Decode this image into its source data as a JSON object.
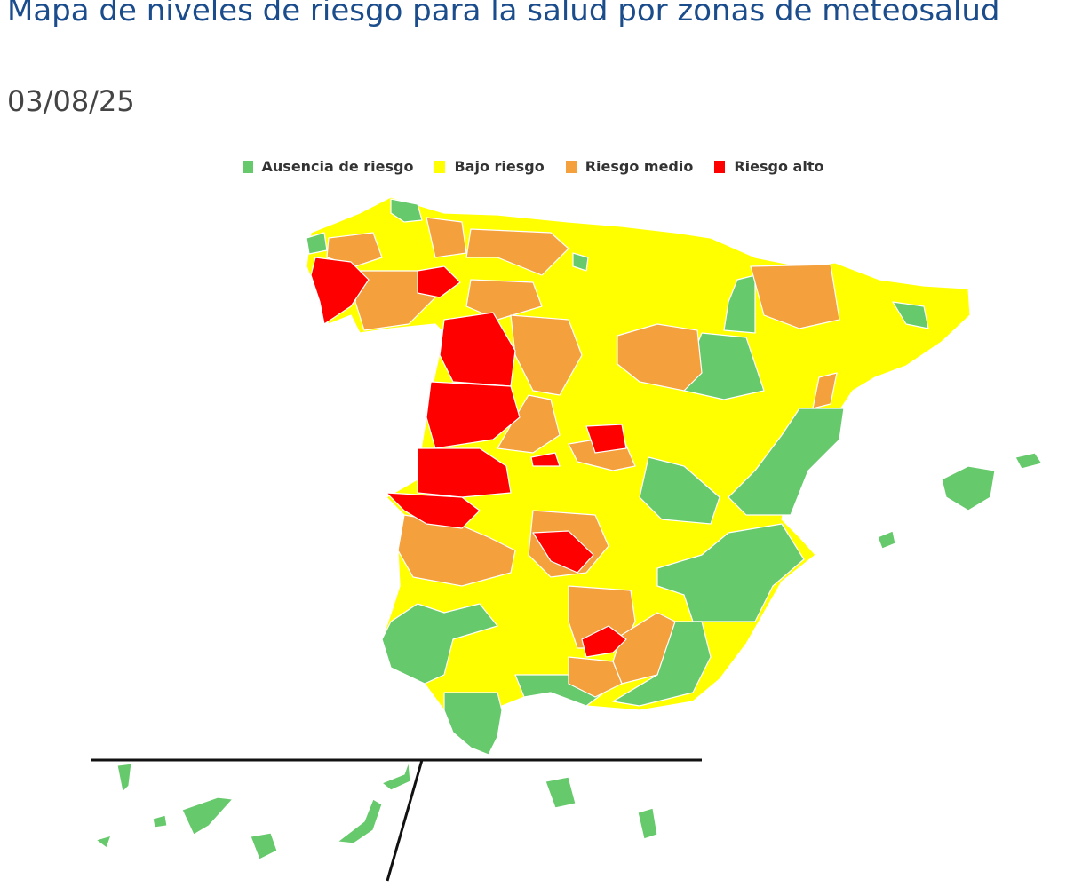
{
  "title": "Mapa de niveles de riesgo para la salud por zonas de meteosalud",
  "date": "03/08/25",
  "legend": [
    {
      "label": "Ausencia de riesgo",
      "color": "#66c96b"
    },
    {
      "label": "Bajo riesgo",
      "color": "#ffff00"
    },
    {
      "label": "Riesgo medio",
      "color": "#f4a03c"
    },
    {
      "label": "Riesgo alto",
      "color": "#ff0000"
    }
  ]
}
